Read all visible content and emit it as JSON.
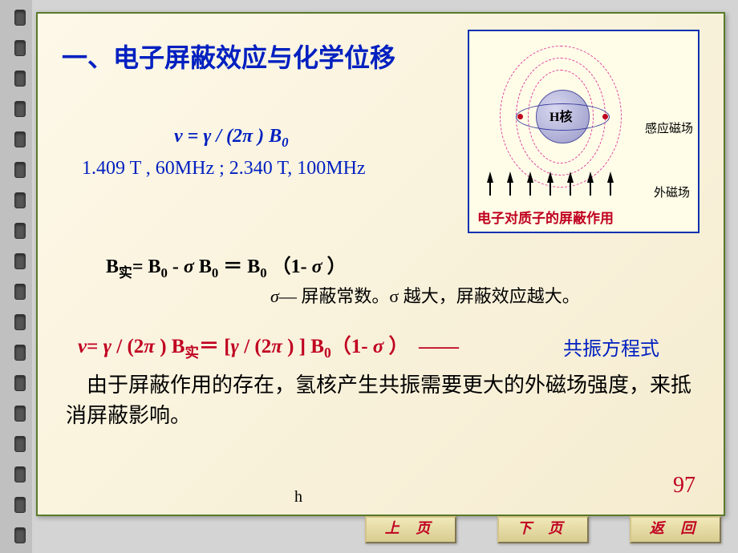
{
  "title": "一、电子屏蔽效应与化学位移",
  "field_values": "1.409 T , 60MHz ;   2.340 T, 100MHz",
  "sub_real": "实",
  "sigma_note": "— 屏蔽常数。σ 越大，屏蔽效应越大。",
  "resonance_label": "共振方程式",
  "body_text": "由于屏蔽作用的存在，氢核产生共振需要更大的外磁场强度，来抵消屏蔽影响。",
  "page_number": "97",
  "footer_h": "h",
  "diagram": {
    "nucleus": "H核",
    "induced": "感应磁场",
    "external": "外磁场",
    "caption": "电子对质子的屏蔽作用"
  },
  "buttons": {
    "prev": "上  页",
    "next": "下  页",
    "back": "返  回"
  },
  "spiral_holes": 18,
  "colors": {
    "title": "#0020c0",
    "equation_red": "#c00020",
    "slide_bg": "#fdf8e8",
    "border": "#5a7a2a",
    "fieldline": "#e040a0",
    "nucleus": "#9898c8"
  }
}
